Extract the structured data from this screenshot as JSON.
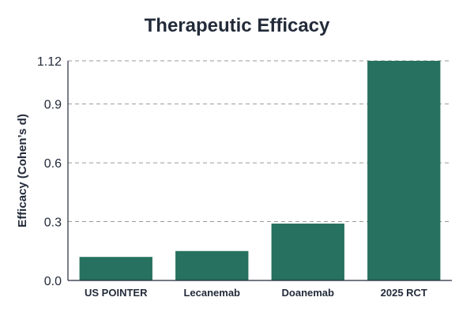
{
  "chart_data": {
    "type": "bar",
    "title": "Therapeutic Efficacy",
    "xlabel": "",
    "ylabel": "Efficacy (Cohen’s d)",
    "categories": [
      "US POINTER",
      "Lecanemab",
      "Doanemab",
      "2025 RCT"
    ],
    "values": [
      0.12,
      0.15,
      0.29,
      1.12
    ],
    "yticks": [
      0.0,
      0.3,
      0.6,
      0.9,
      1.12
    ],
    "ytick_labels": [
      "0.0",
      "0.3",
      "0.6",
      "0.9",
      "1.12"
    ],
    "ylim": [
      0,
      1.12
    ],
    "grid": true,
    "legend": "none",
    "bar_color": "#26715f"
  }
}
